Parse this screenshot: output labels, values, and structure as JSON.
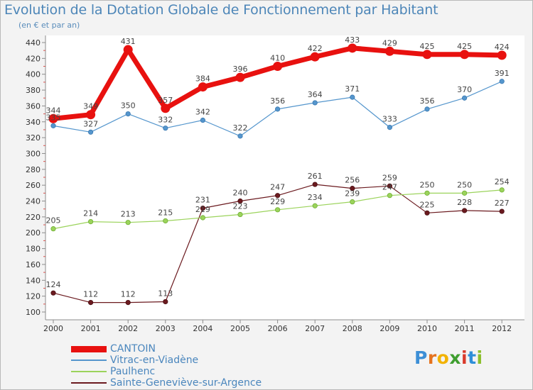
{
  "header": {
    "title": "Evolution de la Dotation Globale de Fonctionnement par Habitant",
    "subtitle": "(en € et par an)"
  },
  "logo": {
    "text": "Proxiti",
    "letters": [
      "P",
      "r",
      "o",
      "x",
      "i",
      "t",
      "i"
    ],
    "colors": [
      "#3d8fd6",
      "#e5731e",
      "#f2b200",
      "#3f9e2f",
      "#d93a2b",
      "#2f8fd8",
      "#8cbf2c"
    ]
  },
  "chart_data": {
    "type": "line",
    "title": "Evolution de la Dotation Globale de Fonctionnement par Habitant",
    "subtitle": "(en € et par an)",
    "xlabel": "",
    "ylabel": "",
    "x": [
      "2000",
      "2001",
      "2002",
      "2003",
      "2004",
      "2005",
      "2006",
      "2007",
      "2008",
      "2009",
      "2010",
      "2011",
      "2012"
    ],
    "ylim": [
      100,
      440
    ],
    "yticks": [
      100,
      120,
      140,
      160,
      180,
      200,
      220,
      240,
      260,
      280,
      300,
      320,
      340,
      360,
      380,
      400,
      420,
      440
    ],
    "grid": false,
    "legend_position": "bottom-left",
    "series": [
      {
        "name": "CANTOIN",
        "color": "#e8110f",
        "values": [
          344,
          349,
          431,
          357,
          384,
          396,
          410,
          422,
          433,
          429,
          425,
          425,
          424
        ]
      },
      {
        "name": "Vitrac-en-Viadène",
        "color": "#5596cd",
        "values": [
          335,
          327,
          350,
          332,
          342,
          322,
          356,
          364,
          371,
          333,
          356,
          370,
          391
        ]
      },
      {
        "name": "Paulhenc",
        "color": "#9bd35b",
        "values": [
          205,
          214,
          213,
          215,
          219,
          223,
          229,
          234,
          239,
          247,
          250,
          250,
          254
        ]
      },
      {
        "name": "Sainte-Geneviève-sur-Argence",
        "color": "#6b1a1f",
        "values": [
          124,
          112,
          112,
          113,
          231,
          240,
          247,
          261,
          256,
          259,
          225,
          228,
          227
        ]
      }
    ]
  }
}
